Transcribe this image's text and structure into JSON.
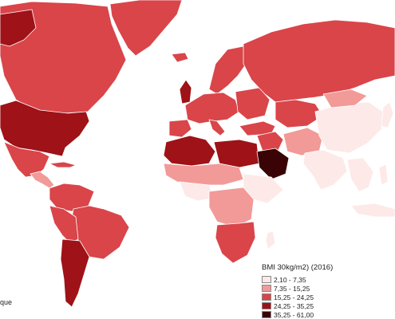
{
  "map": {
    "legend": {
      "title": "BMI 30kg/m2) (2016)",
      "classes": [
        {
          "label": "2,10 - 7,35",
          "color": "#fde9e8"
        },
        {
          "label": "7,35 - 15,25",
          "color": "#f29a98"
        },
        {
          "label": "15,25 - 24,25",
          "color": "#d94549"
        },
        {
          "label": "24,25 - 35,25",
          "color": "#9e1218"
        },
        {
          "label": "35,25 - 61,00",
          "color": "#3a0305"
        }
      ]
    },
    "source_note": "que"
  }
}
